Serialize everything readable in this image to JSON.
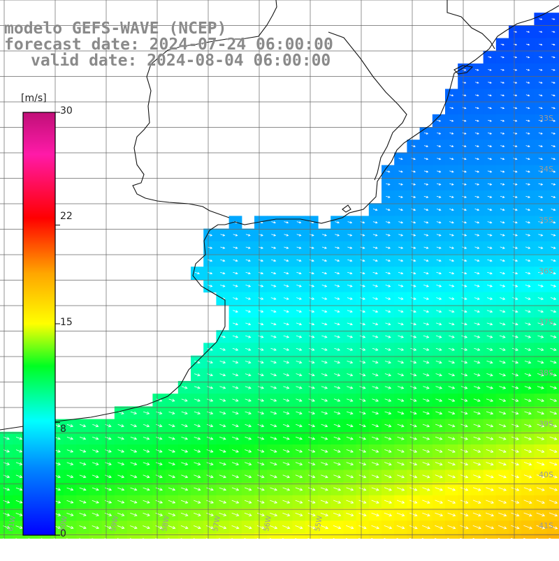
{
  "title": {
    "line1": "modelo GEFS-WAVE (NCEP)",
    "line2": "forecast date: 2024-07-24 06:00:00",
    "line3": "valid date: 2024-08-04 06:00:00"
  },
  "colorbar": {
    "unit": "[m/s]",
    "min": 0,
    "max": 30,
    "tick_labels": [
      "30",
      "22",
      "15",
      "8",
      "0"
    ],
    "tick_values": [
      30,
      22,
      15,
      8,
      0
    ]
  },
  "axes": {
    "lat_labels": [
      "33S",
      "34S",
      "35S",
      "36S",
      "37S",
      "38S",
      "39S",
      "40S",
      "41S"
    ],
    "lat_values": [
      -33,
      -34,
      -35,
      -36,
      -37,
      -38,
      -39,
      -40,
      -41
    ],
    "lon_labels": [
      "61W",
      "60W",
      "59W",
      "58W",
      "57W",
      "56W",
      "55W"
    ],
    "lon_values": [
      -61,
      -60,
      -59,
      -58,
      -57,
      -56,
      -55
    ]
  },
  "colors": {
    "gridline": "#666666",
    "coastline": "#111111",
    "arrows": "#ffffff",
    "title_text": "#8a8a8a"
  }
}
